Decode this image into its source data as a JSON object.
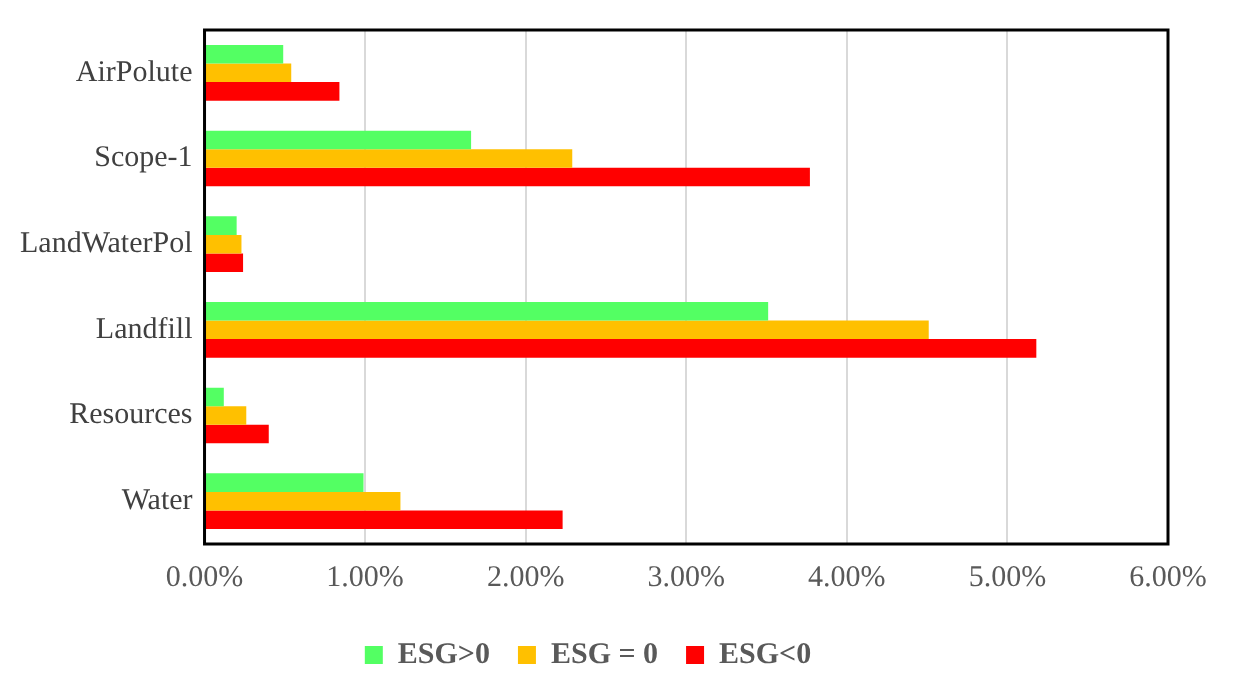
{
  "chart_data": {
    "type": "bar",
    "orientation": "horizontal",
    "categories": [
      "AirPolute",
      "Scope-1",
      "LandWaterPol",
      "Landfill",
      "Resources",
      "Water"
    ],
    "series": [
      {
        "name": "ESG>0",
        "color": "#53ff63",
        "values": [
          0.49,
          1.66,
          0.2,
          3.51,
          0.12,
          0.99
        ]
      },
      {
        "name": "ESG = 0",
        "color": "#ffc000",
        "values": [
          0.54,
          2.29,
          0.23,
          4.51,
          0.26,
          1.22
        ]
      },
      {
        "name": "ESG<0",
        "color": "#ff0000",
        "values": [
          0.84,
          3.77,
          0.24,
          5.18,
          0.4,
          2.23
        ]
      }
    ],
    "xlim": [
      0,
      6
    ],
    "xticks": [
      {
        "value": 0,
        "label": "0.00%"
      },
      {
        "value": 1,
        "label": "1.00%"
      },
      {
        "value": 2,
        "label": "2.00%"
      },
      {
        "value": 3,
        "label": "3.00%"
      },
      {
        "value": 4,
        "label": "4.00%"
      },
      {
        "value": 5,
        "label": "5.00%"
      },
      {
        "value": 6,
        "label": "6.00%"
      }
    ],
    "grid": "x",
    "legend": "bottom"
  }
}
